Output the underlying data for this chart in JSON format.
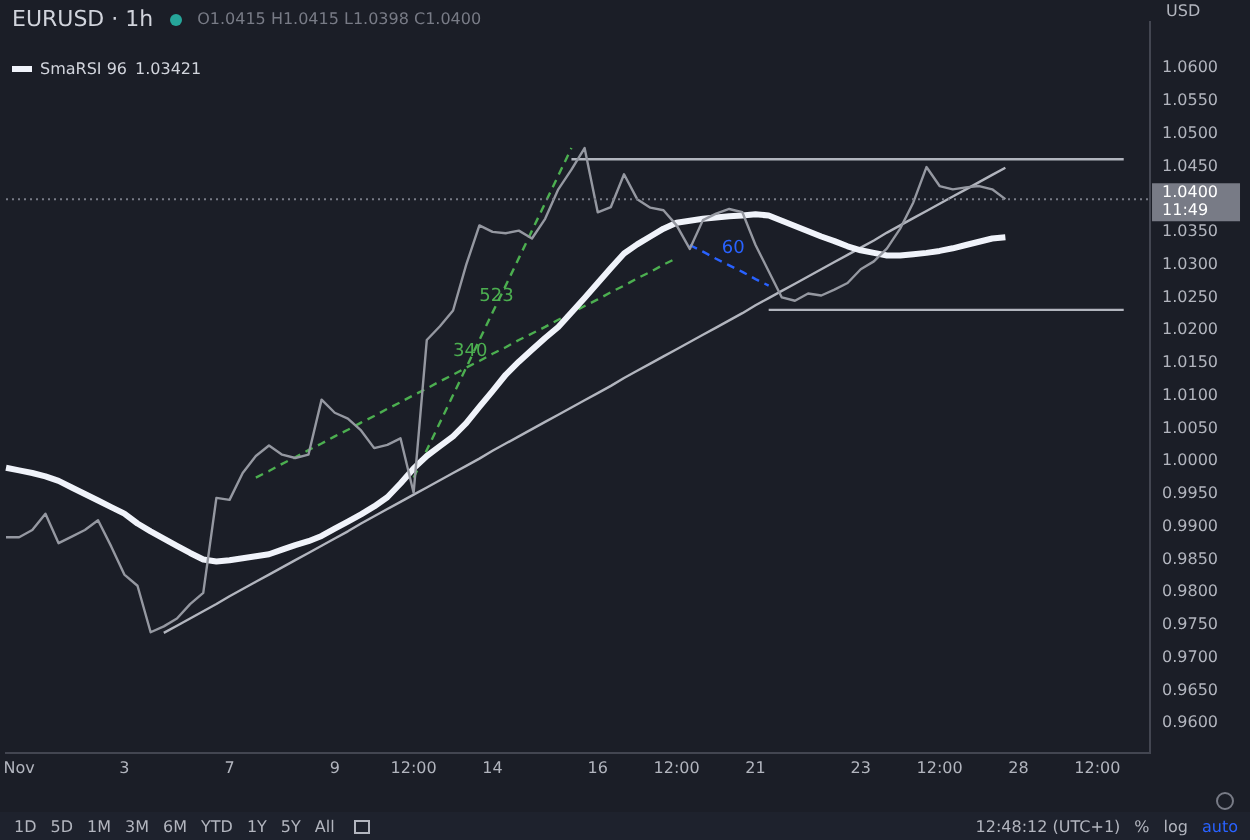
{
  "chart_data": {
    "type": "line",
    "title": "EURUSD · 1h",
    "subtitle": "O1.0415 H1.0415 L1.0398 C1.0400",
    "ylabel": "USD",
    "legend": "top left",
    "marker": "none",
    "categories": [
      null,
      "Nov",
      null,
      null,
      null,
      null,
      null,
      null,
      null,
      "3",
      null,
      null,
      null,
      null,
      null,
      null,
      null,
      "7",
      null,
      null,
      null,
      null,
      null,
      null,
      null,
      "9",
      null,
      null,
      null,
      null,
      null,
      "12:00",
      null,
      null,
      null,
      null,
      null,
      "14",
      null,
      null,
      null,
      null,
      null,
      null,
      null,
      "16",
      null,
      null,
      null,
      null,
      null,
      "12:00",
      null,
      null,
      null,
      null,
      null,
      "21",
      null,
      null,
      null,
      null,
      null,
      null,
      null,
      "23",
      null,
      null,
      null,
      null,
      null,
      "12:00",
      null,
      null,
      null,
      null,
      null,
      "28",
      null,
      null,
      null,
      null,
      null,
      "12:00",
      null,
      null,
      null,
      null
    ],
    "ylim": [
      0.9555,
      1.0671
    ],
    "yticks": [
      {
        "value": 0.96,
        "label": "0.9600"
      },
      {
        "value": 0.965,
        "label": "0.9650"
      },
      {
        "value": 0.97,
        "label": "0.9700"
      },
      {
        "value": 0.975,
        "label": "0.9750"
      },
      {
        "value": 0.98,
        "label": "0.9800"
      },
      {
        "value": 0.985,
        "label": "0.9850"
      },
      {
        "value": 0.99,
        "label": "0.9900"
      },
      {
        "value": 0.995,
        "label": "0.9950"
      },
      {
        "value": 1.0,
        "label": "1.0000"
      },
      {
        "value": 1.005,
        "label": "1.0050"
      },
      {
        "value": 1.01,
        "label": "1.0100"
      },
      {
        "value": 1.015,
        "label": "1.0150"
      },
      {
        "value": 1.02,
        "label": "1.0200"
      },
      {
        "value": 1.025,
        "label": "1.0250"
      },
      {
        "value": 1.03,
        "label": "1.0300"
      },
      {
        "value": 1.035,
        "label": "1.0350"
      },
      {
        "value": 1.045,
        "label": "1.0450"
      },
      {
        "value": 1.05,
        "label": "1.0500"
      },
      {
        "value": 1.055,
        "label": "1.0550"
      },
      {
        "value": 1.06,
        "label": "1.0600"
      }
    ],
    "series": [
      {
        "color": "#9598a1",
        "values": [
          0.9884,
          0.9884,
          0.9895,
          0.992,
          0.9875,
          0.9885,
          0.9895,
          0.991,
          0.987,
          0.9827,
          0.981,
          0.9739,
          0.9748,
          0.976,
          0.9782,
          0.9799,
          0.9944,
          0.9941,
          0.9982,
          1.0008,
          1.0024,
          1.001,
          1.0005,
          1.001,
          1.0094,
          1.0074,
          1.0065,
          1.0047,
          1.002,
          1.0025,
          1.0035,
          0.9952,
          1.0185,
          1.0206,
          1.023,
          1.03,
          1.036,
          1.035,
          1.0348,
          1.0352,
          1.034,
          1.037,
          1.0415,
          1.0445,
          1.0478,
          1.038,
          1.0388,
          1.0438,
          1.04,
          1.0387,
          1.0383,
          1.036,
          1.0324,
          1.0368,
          1.0378,
          1.0385,
          1.038,
          1.033,
          1.029,
          1.025,
          1.0245,
          1.0256,
          1.0253,
          1.0262,
          1.0272,
          1.0293,
          1.0305,
          1.0325,
          1.0355,
          1.0395,
          1.0449,
          1.042,
          1.0415,
          1.0418,
          1.042,
          1.0415,
          1.04,
          null,
          null,
          null,
          null,
          null,
          null,
          null,
          null,
          null,
          null,
          null
        ]
      },
      {
        "name": "SmaRSI 96",
        "color": "#f0f3fa",
        "values": [
          0.999,
          0.9986,
          0.9982,
          0.9977,
          0.997,
          0.996,
          0.995,
          0.994,
          0.993,
          0.992,
          0.9905,
          0.9893,
          0.9882,
          0.9871,
          0.986,
          0.985,
          0.9847,
          0.9849,
          0.9852,
          0.9855,
          0.9858,
          0.9865,
          0.9872,
          0.9878,
          0.9886,
          0.9897,
          0.9908,
          0.9919,
          0.9931,
          0.9945,
          0.9966,
          0.9989,
          1.0008,
          1.0023,
          1.0038,
          1.0058,
          1.0083,
          1.0107,
          1.0132,
          1.0152,
          1.017,
          1.0188,
          1.0205,
          1.0227,
          1.0249,
          1.0272,
          1.0295,
          1.0317,
          1.0331,
          1.0343,
          1.0355,
          1.0364,
          1.0367,
          1.037,
          1.0372,
          1.0374,
          1.0375,
          1.0377,
          1.0375,
          1.0367,
          1.0359,
          1.0351,
          1.0343,
          1.0336,
          1.0328,
          1.0322,
          1.0318,
          1.0314,
          1.0314,
          1.0316,
          1.0318,
          1.0321,
          1.0325,
          1.033,
          1.0335,
          1.034,
          1.0342,
          null,
          null,
          null,
          null,
          null,
          null,
          null,
          null,
          null,
          null,
          null
        ]
      },
      {
        "color": "#b2b5be",
        "values": [
          null,
          null,
          null,
          null,
          null,
          null,
          null,
          null,
          null,
          null,
          null,
          null,
          0.9738,
          0.9749,
          0.976,
          0.9771,
          0.9782,
          0.9794,
          0.9805,
          0.9816,
          0.9827,
          0.9838,
          0.9849,
          0.986,
          0.9871,
          0.9882,
          0.9893,
          0.9905,
          0.9916,
          0.9927,
          0.9938,
          0.9949,
          0.996,
          0.9971,
          0.9982,
          0.9993,
          1.0004,
          1.0016,
          1.0027,
          1.0038,
          1.0049,
          1.006,
          1.0071,
          1.0082,
          1.0093,
          1.0104,
          1.0115,
          1.0127,
          1.0138,
          1.0149,
          1.016,
          1.0171,
          1.0182,
          1.0193,
          1.0204,
          1.0215,
          1.0226,
          1.0238,
          1.0249,
          1.026,
          1.0271,
          1.0282,
          1.0293,
          1.0304,
          1.0315,
          1.0326,
          1.0337,
          1.0349,
          1.036,
          1.0371,
          1.0382,
          1.0393,
          1.0404,
          1.0415,
          1.0426,
          1.0437,
          1.0448,
          null,
          null,
          null,
          null,
          null,
          null,
          null,
          null,
          null,
          null,
          null
        ]
      },
      {
        "color": "#b2b5be",
        "values": [
          null,
          null,
          null,
          null,
          null,
          null,
          null,
          null,
          null,
          null,
          null,
          null,
          null,
          null,
          null,
          null,
          null,
          null,
          null,
          null,
          null,
          null,
          null,
          null,
          null,
          null,
          null,
          null,
          null,
          null,
          null,
          null,
          null,
          null,
          null,
          null,
          null,
          null,
          null,
          null,
          null,
          null,
          null,
          1.0461,
          1.0461,
          1.0461,
          1.0461,
          1.0461,
          1.0461,
          1.0461,
          1.0461,
          1.0461,
          1.0461,
          1.0461,
          1.0461,
          1.0461,
          1.0461,
          1.0461,
          1.0461,
          1.0461,
          1.0461,
          1.0461,
          1.0461,
          1.0461,
          1.0461,
          1.0461,
          1.0461,
          1.0461,
          1.0461,
          1.0461,
          1.0461,
          1.0461,
          1.0461,
          1.0461,
          1.0461,
          1.0461,
          1.0461,
          1.0461,
          1.0461,
          1.0461,
          1.0461,
          1.0461,
          1.0461,
          1.0461,
          1.0461,
          1.0461,
          null,
          null
        ]
      },
      {
        "color": "#b2b5be",
        "values": [
          null,
          null,
          null,
          null,
          null,
          null,
          null,
          null,
          null,
          null,
          null,
          null,
          null,
          null,
          null,
          null,
          null,
          null,
          null,
          null,
          null,
          null,
          null,
          null,
          null,
          null,
          null,
          null,
          null,
          null,
          null,
          null,
          null,
          null,
          null,
          null,
          null,
          null,
          null,
          null,
          null,
          null,
          null,
          null,
          null,
          null,
          null,
          null,
          null,
          null,
          null,
          null,
          null,
          null,
          null,
          null,
          null,
          null,
          1.0231,
          1.0231,
          1.0231,
          1.0231,
          1.0231,
          1.0231,
          1.0231,
          1.0231,
          1.0231,
          1.0231,
          1.0231,
          1.0231,
          1.0231,
          1.0231,
          1.0231,
          1.0231,
          1.0231,
          1.0231,
          1.0231,
          1.0231,
          1.0231,
          1.0231,
          1.0231,
          1.0231,
          1.0231,
          1.0231,
          1.0231,
          1.0231,
          null,
          null
        ]
      },
      {
        "name": "340",
        "color": "#4caf50",
        "line_style": "dashed",
        "values": [
          null,
          null,
          null,
          null,
          null,
          null,
          null,
          null,
          null,
          null,
          null,
          null,
          null,
          null,
          null,
          null,
          null,
          null,
          null,
          0.9975,
          0.9985,
          0.9996,
          1.0006,
          1.0017,
          1.0027,
          1.0038,
          1.0048,
          1.0059,
          1.0069,
          1.008,
          1.009,
          1.0101,
          1.0111,
          1.0122,
          1.0132,
          1.0143,
          1.0153,
          1.0164,
          1.0174,
          1.0185,
          1.0195,
          1.0205,
          1.0216,
          1.0226,
          1.0237,
          1.0247,
          1.0258,
          1.0268,
          1.0279,
          1.0289,
          1.03,
          1.031,
          null,
          null,
          null,
          null,
          null,
          null,
          null,
          null,
          null,
          null,
          null,
          null,
          null,
          null,
          null,
          null,
          null,
          null,
          null,
          null,
          null,
          null,
          null,
          null,
          null,
          null,
          null,
          null,
          null,
          null,
          null,
          null,
          null,
          null,
          null,
          null
        ]
      },
      {
        "name": "523",
        "color": "#4caf50",
        "line_style": "dashed",
        "values": [
          null,
          null,
          null,
          null,
          null,
          null,
          null,
          null,
          null,
          null,
          null,
          null,
          null,
          null,
          null,
          null,
          null,
          null,
          null,
          null,
          null,
          null,
          null,
          null,
          null,
          null,
          null,
          null,
          null,
          null,
          null,
          0.9975,
          1.0017,
          1.0059,
          1.0101,
          1.0143,
          1.0185,
          1.0227,
          1.0268,
          1.031,
          1.0352,
          1.0394,
          1.0436,
          1.0478,
          null,
          null,
          null,
          null,
          null,
          null,
          null,
          null,
          null,
          null,
          null,
          null,
          null,
          null,
          null,
          null,
          null,
          null,
          null,
          null,
          null,
          null,
          null,
          null,
          null,
          null,
          null,
          null,
          null,
          null,
          null,
          null,
          null,
          null,
          null,
          null,
          null,
          null,
          null,
          null,
          null,
          null,
          null,
          null
        ]
      },
      {
        "name": "60",
        "color": "#2962ff",
        "line_style": "dashed",
        "values": [
          null,
          null,
          null,
          null,
          null,
          null,
          null,
          null,
          null,
          null,
          null,
          null,
          null,
          null,
          null,
          null,
          null,
          null,
          null,
          null,
          null,
          null,
          null,
          null,
          null,
          null,
          null,
          null,
          null,
          null,
          null,
          null,
          null,
          null,
          null,
          null,
          null,
          null,
          null,
          null,
          null,
          null,
          null,
          null,
          null,
          null,
          null,
          null,
          null,
          null,
          null,
          null,
          1.033,
          1.032,
          1.0309,
          1.0299,
          1.0289,
          1.0278,
          1.0268,
          null,
          null,
          null,
          null,
          null,
          null,
          null,
          null,
          null,
          null,
          null,
          null,
          null,
          null,
          null,
          null,
          null,
          null,
          null,
          null,
          null,
          null,
          null,
          null,
          null,
          null,
          null,
          null,
          null
        ]
      }
    ],
    "ref_lines": [
      {
        "axis": "y",
        "value": 1.04,
        "label": "1.0400",
        "line_style": "dotted",
        "color": "#787b86"
      }
    ],
    "annotations": [
      "1.03421",
      "11:49",
      "1D",
      "5D",
      "1M",
      "3M",
      "6M",
      "YTD",
      "1Y",
      "5Y",
      "All",
      "12:48:12 (UTC+1)",
      "%",
      "log",
      "auto"
    ]
  }
}
